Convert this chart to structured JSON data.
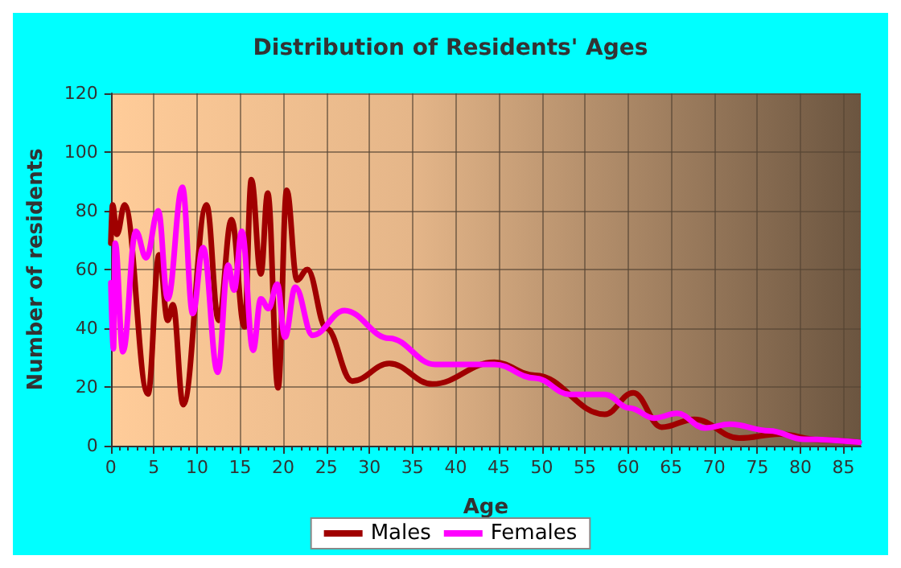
{
  "chart_data": {
    "type": "line",
    "title": "Distribution of Residents' Ages",
    "xlabel": "Age",
    "ylabel": "Number of residents",
    "xlim": [
      0,
      87
    ],
    "xticks": [
      0,
      5,
      10,
      15,
      20,
      25,
      30,
      35,
      40,
      45,
      50,
      55,
      60,
      65,
      70,
      75,
      80,
      85
    ],
    "ylim": [
      0,
      120
    ],
    "yticks": [
      0,
      20,
      40,
      60,
      80,
      100,
      120
    ],
    "grid": true,
    "legend": "bottom",
    "marker": "none",
    "line_style": "solid",
    "series": [
      {
        "name": "Males",
        "color": "#a00000",
        "x": [
          0,
          0.2,
          0.7,
          1.6,
          4.3,
          5.6,
          6.6,
          7.2,
          8.4,
          11.1,
          12.5,
          14,
          15.5,
          16.3,
          17.4,
          18.2,
          19.4,
          20.4,
          21.6,
          22.8,
          25,
          28,
          32.3,
          37.3,
          44.5,
          49.2,
          57.3,
          60.6,
          63.9,
          67.7,
          72.9,
          77.6,
          82.2,
          86.8
        ],
        "values": [
          69,
          82,
          72,
          82,
          17.6,
          65,
          42.7,
          48,
          14,
          82,
          42.7,
          77,
          40.5,
          90.6,
          58.5,
          86,
          19.7,
          87,
          56.4,
          60,
          40,
          22,
          28,
          21,
          28.4,
          24,
          10.7,
          18,
          6.3,
          9,
          2.6,
          4,
          2,
          1.2
        ]
      },
      {
        "name": "Females",
        "color": "#ff00ff",
        "x": [
          0,
          0.3,
          0.5,
          1.4,
          2.9,
          4.1,
          5.5,
          6.6,
          8.3,
          9.5,
          10.7,
          12.4,
          13.6,
          14.3,
          15.2,
          16.5,
          17.4,
          18.3,
          19.3,
          20.2,
          21.4,
          23.4,
          27.1,
          32.3,
          37.6,
          44.5,
          49.2,
          53.2,
          57.3,
          60.2,
          63,
          65.7,
          68.9,
          71.8,
          76.4,
          80.4,
          86.8
        ],
        "values": [
          55.5,
          33,
          69,
          32,
          73,
          64,
          80,
          50,
          88,
          45,
          67.5,
          25,
          61.5,
          53,
          73,
          32.5,
          50,
          46.7,
          55,
          37,
          54,
          37.6,
          46,
          36.6,
          27.7,
          27.7,
          23,
          17.5,
          17.5,
          12.8,
          9.4,
          11,
          6,
          7.3,
          5.1,
          2.2,
          1.2
        ]
      }
    ]
  }
}
